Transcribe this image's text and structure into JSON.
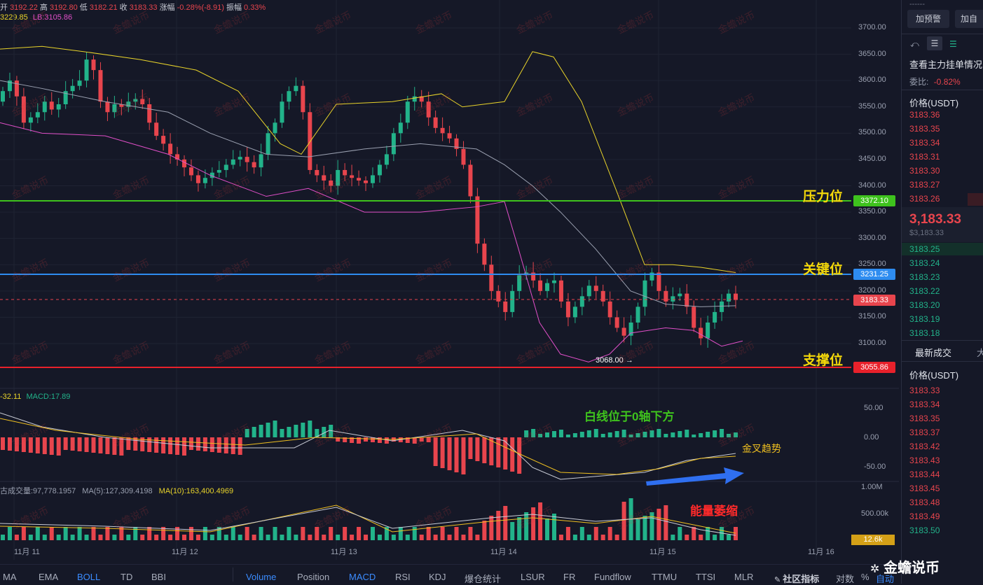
{
  "ohlc": {
    "open_label": "开",
    "open": "3192.22",
    "high_label": "高",
    "high": "3192.80",
    "low_label": "低",
    "low": "3182.21",
    "close_label": "收",
    "close": "3183.33",
    "chg_label": "涨幅",
    "chg": "-0.28%(-8.91)",
    "amp_label": "振幅",
    "amp": "0.33%"
  },
  "boll_info": {
    "up": "3229.85",
    "lb": "LB:3105.86"
  },
  "macd_info": {
    "dea": "-32.11",
    "macd": "MACD:17.89"
  },
  "vol_info": {
    "vol": "古成交量:97,778.1957",
    "ma5": "MA(5):127,309.4198",
    "ma10": "MA(10):163,400.4969"
  },
  "price_ticks": [
    "3700.00",
    "3650.00",
    "3600.00",
    "3550.00",
    "3500.00",
    "3450.00",
    "3400.00",
    "3350.00",
    "3300.00",
    "3250.00",
    "3200.00",
    "3150.00",
    "3100.00"
  ],
  "macd_ticks": [
    "50.00",
    "0.00",
    "-50.00"
  ],
  "vol_ticks": [
    "1.00M",
    "500.00k"
  ],
  "levels": {
    "resistance_label": "压力位",
    "resistance_value": "3372.10",
    "key_label": "关键位",
    "key_value": "3231.25",
    "support_label": "支撑位",
    "support_value": "3055.86",
    "current_value": "3183.33",
    "low_marker": "3068.00 →"
  },
  "annotations": {
    "white_line": "白线位于0轴下方",
    "golden_cross": "金叉趋势",
    "energy": "能量萎缩",
    "vol_badge": "12.6k"
  },
  "x_labels": [
    "11月 11",
    "11月 12",
    "11月 13",
    "11月 14",
    "11月 15",
    "11月 16"
  ],
  "watermark": "金蟾说币",
  "indicators": {
    "left": [
      "MA",
      "EMA",
      "BOLL",
      "TD",
      "BBI"
    ],
    "right": [
      "Volume",
      "Position",
      "MACD",
      "RSI",
      "KDJ",
      "爆仓统计",
      "LSUR",
      "FR",
      "Fundflow",
      "TTMU",
      "TTSI",
      "MLR"
    ],
    "community": "社区指标",
    "compare": "对数",
    "pct": "%",
    "auto": "自动"
  },
  "right_panel": {
    "dashes": "------",
    "add_alert": "加预警",
    "add_self": "加自",
    "orderbook_title": "查看主力挂单情况",
    "ratio_label": "委比:",
    "ratio_value": "-0.82%",
    "price_header": "价格(USDT)",
    "asks": [
      "3183.36",
      "3183.35",
      "3183.34",
      "3183.31",
      "3183.30",
      "3183.27",
      "3183.26"
    ],
    "last": "3,183.33",
    "last_usd": "$3,183.33",
    "bids": [
      "3183.25",
      "3183.24",
      "3183.23",
      "3183.22",
      "3183.20",
      "3183.19",
      "3183.18"
    ],
    "trades_tab": "最新成交",
    "trades_tab2": "大",
    "trades_header": "价格(USDT)",
    "trades": [
      "3183.33",
      "3183.34",
      "3183.35",
      "3183.37",
      "3183.42",
      "3183.43",
      "3183.44",
      "3183.45",
      "3183.48",
      "3183.49",
      "3183.50"
    ],
    "trades_colors": [
      "red",
      "red",
      "red",
      "red",
      "red",
      "red",
      "red",
      "red",
      "red",
      "red",
      "green"
    ]
  },
  "brand": "金蟾说币",
  "colors": {
    "up": "#22b38a",
    "down": "#e8454d",
    "resistance": "#3ec21d",
    "key": "#2e8cf0",
    "support": "#e8212b",
    "boll_up": "#e8d32a",
    "boll_mid": "#9aa0b0",
    "boll_low": "#e04fc8",
    "gold": "#f0c020"
  }
}
